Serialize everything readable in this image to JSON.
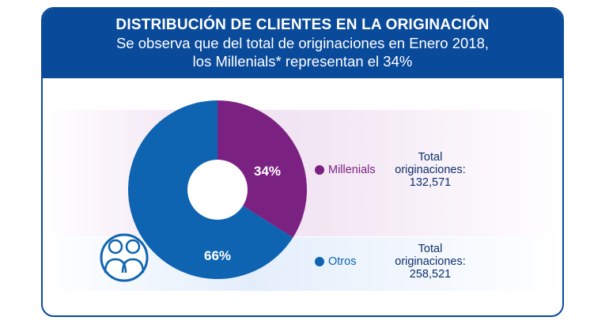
{
  "header": {
    "title": "DISTRIBUCIÓN DE CLIENTES EN LA ORIGINACIÓN",
    "subtitle_line1": "Se observa que del total de originaciones en Enero 2018,",
    "subtitle_line2": "los Millenials* representan el 34%"
  },
  "colors": {
    "brand": "#0a4a9a",
    "millenials": "#7b2182",
    "otros": "#0e64b0"
  },
  "icons": [
    "people-icon"
  ],
  "chart_data": {
    "type": "pie",
    "title": "DISTRIBUCIÓN DE CLIENTES EN LA ORIGINACIÓN",
    "categories": [
      "Millenials",
      "Otros"
    ],
    "values": [
      34,
      66
    ],
    "value_labels": [
      "34%",
      "66%"
    ],
    "totals": [
      {
        "label_line1": "Total",
        "label_line2": "originaciones:",
        "value": "132,571"
      },
      {
        "label_line1": "Total",
        "label_line2": "originaciones:",
        "value": "258,521"
      }
    ],
    "colors": [
      "#7b2182",
      "#0e64b0"
    ],
    "donut": true
  }
}
